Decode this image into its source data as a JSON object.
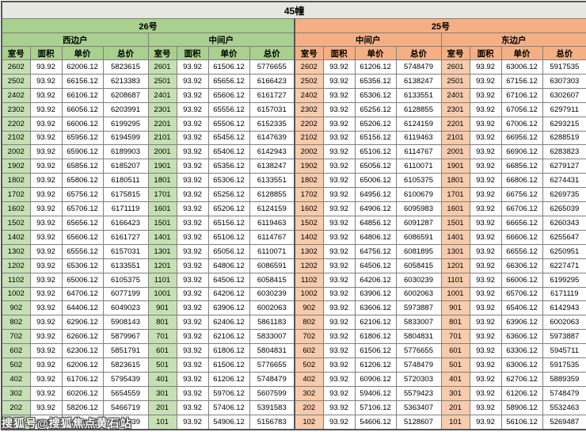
{
  "title": "45幢",
  "watermark": "搜狐号@搜狐焦点黄石站",
  "columns": [
    "室号",
    "面积",
    "单价",
    "总价"
  ],
  "colors": {
    "green_header": "#a9d08e",
    "green_cell": "#c6e0b4",
    "orange_header": "#f4b084",
    "orange_cell": "#f8cbad",
    "title_bg": "#e7e7e2",
    "grid": "#7f7f7f",
    "outer": "#555555"
  },
  "buildings": [
    {
      "name": "26号",
      "theme": "green",
      "units": [
        {
          "name": "西边户",
          "rows": [
            [
              "2602",
              "93.92",
              "62006.12",
              "5823615"
            ],
            [
              "2502",
              "93.92",
              "66156.12",
              "6213383"
            ],
            [
              "2402",
              "93.92",
              "66106.12",
              "6208687"
            ],
            [
              "2302",
              "93.92",
              "66056.12",
              "6203991"
            ],
            [
              "2202",
              "93.92",
              "66006.12",
              "6199295"
            ],
            [
              "2102",
              "93.92",
              "65956.12",
              "6194599"
            ],
            [
              "2002",
              "93.92",
              "65906.12",
              "6189903"
            ],
            [
              "1902",
              "93.92",
              "65856.12",
              "6185207"
            ],
            [
              "1802",
              "93.92",
              "65806.12",
              "6180511"
            ],
            [
              "1702",
              "93.92",
              "65756.12",
              "6175815"
            ],
            [
              "1602",
              "93.92",
              "65706.12",
              "6171119"
            ],
            [
              "1502",
              "93.92",
              "65656.12",
              "6166423"
            ],
            [
              "1402",
              "93.92",
              "65606.12",
              "6161727"
            ],
            [
              "1302",
              "93.92",
              "65556.12",
              "6157031"
            ],
            [
              "1202",
              "93.92",
              "65306.12",
              "6133551"
            ],
            [
              "1102",
              "93.92",
              "65006.12",
              "6105375"
            ],
            [
              "1002",
              "93.92",
              "64706.12",
              "6077199"
            ],
            [
              "902",
              "93.92",
              "64406.12",
              "6049023"
            ],
            [
              "802",
              "93.92",
              "62906.12",
              "5908143"
            ],
            [
              "702",
              "93.92",
              "62606.12",
              "5879967"
            ],
            [
              "602",
              "93.92",
              "62306.12",
              "5851791"
            ],
            [
              "502",
              "93.92",
              "62006.12",
              "5823615"
            ],
            [
              "402",
              "93.92",
              "61706.12",
              "5795439"
            ],
            [
              "302",
              "93.92",
              "60206.12",
              "5654559"
            ],
            [
              "202",
              "93.92",
              "58206.12",
              "5466719"
            ],
            [
              "102",
              "93.92",
              "54206.12",
              "5091039"
            ]
          ]
        },
        {
          "name": "中间户",
          "rows": [
            [
              "2601",
              "93.92",
              "61506.12",
              "5776655"
            ],
            [
              "2501",
              "93.92",
              "65656.12",
              "6166423"
            ],
            [
              "2401",
              "93.92",
              "65606.12",
              "6161727"
            ],
            [
              "2301",
              "93.92",
              "65556.12",
              "6157031"
            ],
            [
              "2201",
              "93.92",
              "65506.12",
              "6152335"
            ],
            [
              "2101",
              "93.92",
              "65456.12",
              "6147639"
            ],
            [
              "2001",
              "93.92",
              "65406.12",
              "6142943"
            ],
            [
              "1901",
              "93.92",
              "65356.12",
              "6138247"
            ],
            [
              "1801",
              "93.92",
              "65306.12",
              "6133551"
            ],
            [
              "1701",
              "93.92",
              "65256.12",
              "6128855"
            ],
            [
              "1601",
              "93.92",
              "65206.12",
              "6124159"
            ],
            [
              "1501",
              "93.92",
              "65156.12",
              "6119463"
            ],
            [
              "1401",
              "93.92",
              "65106.12",
              "6114767"
            ],
            [
              "1301",
              "93.92",
              "65056.12",
              "6110071"
            ],
            [
              "1201",
              "93.92",
              "64806.12",
              "6086591"
            ],
            [
              "1101",
              "93.92",
              "64506.12",
              "6058415"
            ],
            [
              "1001",
              "93.92",
              "64206.12",
              "6030239"
            ],
            [
              "901",
              "93.92",
              "63906.12",
              "6002063"
            ],
            [
              "801",
              "93.92",
              "62406.12",
              "5861183"
            ],
            [
              "701",
              "93.92",
              "62106.12",
              "5833007"
            ],
            [
              "601",
              "93.92",
              "61806.12",
              "5804831"
            ],
            [
              "501",
              "93.92",
              "61506.12",
              "5776655"
            ],
            [
              "401",
              "93.92",
              "61206.12",
              "5748479"
            ],
            [
              "301",
              "93.92",
              "59706.12",
              "5607599"
            ],
            [
              "201",
              "93.92",
              "57406.12",
              "5391583"
            ],
            [
              "101",
              "93.92",
              "54906.12",
              "5156783"
            ]
          ]
        }
      ]
    },
    {
      "name": "25号",
      "theme": "orange",
      "units": [
        {
          "name": "中间户",
          "rows": [
            [
              "2602",
              "93.92",
              "61206.12",
              "5748479"
            ],
            [
              "2502",
              "93.92",
              "65356.12",
              "6138247"
            ],
            [
              "2402",
              "93.92",
              "65306.12",
              "6133551"
            ],
            [
              "2302",
              "93.92",
              "65256.12",
              "6128855"
            ],
            [
              "2202",
              "93.92",
              "65206.12",
              "6124159"
            ],
            [
              "2102",
              "93.92",
              "65156.12",
              "6119463"
            ],
            [
              "2002",
              "93.92",
              "65106.12",
              "6114767"
            ],
            [
              "1902",
              "93.92",
              "65056.12",
              "6110071"
            ],
            [
              "1802",
              "93.92",
              "65006.12",
              "6105375"
            ],
            [
              "1702",
              "93.92",
              "64956.12",
              "6100679"
            ],
            [
              "1602",
              "93.92",
              "64906.12",
              "6095983"
            ],
            [
              "1502",
              "93.92",
              "64856.12",
              "6091287"
            ],
            [
              "1402",
              "93.92",
              "64806.12",
              "6086591"
            ],
            [
              "1302",
              "93.92",
              "64756.12",
              "6081895"
            ],
            [
              "1202",
              "93.92",
              "64506.12",
              "6058415"
            ],
            [
              "1102",
              "93.92",
              "64206.12",
              "6030239"
            ],
            [
              "1002",
              "93.92",
              "63906.12",
              "6002063"
            ],
            [
              "902",
              "93.92",
              "63606.12",
              "5973887"
            ],
            [
              "802",
              "93.92",
              "62106.12",
              "5833007"
            ],
            [
              "702",
              "93.92",
              "61806.12",
              "5804831"
            ],
            [
              "602",
              "93.92",
              "61506.12",
              "5776655"
            ],
            [
              "502",
              "93.92",
              "61206.12",
              "5748479"
            ],
            [
              "402",
              "93.92",
              "60906.12",
              "5720303"
            ],
            [
              "302",
              "93.92",
              "59406.12",
              "5579423"
            ],
            [
              "202",
              "93.92",
              "57106.12",
              "5363407"
            ],
            [
              "102",
              "93.92",
              "54606.12",
              "5128607"
            ]
          ]
        },
        {
          "name": "东边户",
          "rows": [
            [
              "2601",
              "93.92",
              "63006.12",
              "5917535"
            ],
            [
              "2501",
              "93.92",
              "67156.12",
              "6307303"
            ],
            [
              "2401",
              "93.92",
              "67106.12",
              "6302607"
            ],
            [
              "2301",
              "93.92",
              "67056.12",
              "6297911"
            ],
            [
              "2201",
              "93.92",
              "67006.12",
              "6293215"
            ],
            [
              "2101",
              "93.92",
              "66956.12",
              "6288519"
            ],
            [
              "2001",
              "93.92",
              "66906.12",
              "6283823"
            ],
            [
              "1901",
              "93.92",
              "66856.12",
              "6279127"
            ],
            [
              "1801",
              "93.92",
              "66806.12",
              "6274431"
            ],
            [
              "1701",
              "93.92",
              "66756.12",
              "6269735"
            ],
            [
              "1601",
              "93.92",
              "66706.12",
              "6265039"
            ],
            [
              "1501",
              "93.92",
              "66656.12",
              "6260343"
            ],
            [
              "1401",
              "93.92",
              "66606.12",
              "6255647"
            ],
            [
              "1301",
              "93.92",
              "66556.12",
              "6250951"
            ],
            [
              "1201",
              "93.92",
              "66306.12",
              "6227471"
            ],
            [
              "1101",
              "93.92",
              "66006.12",
              "6199295"
            ],
            [
              "1001",
              "93.92",
              "65706.12",
              "6171119"
            ],
            [
              "901",
              "93.92",
              "65406.12",
              "6142943"
            ],
            [
              "801",
              "93.92",
              "63906.12",
              "6002063"
            ],
            [
              "701",
              "93.92",
              "63606.12",
              "5973887"
            ],
            [
              "601",
              "93.92",
              "63306.12",
              "5945711"
            ],
            [
              "501",
              "93.92",
              "63006.12",
              "5917535"
            ],
            [
              "401",
              "93.92",
              "62706.12",
              "5889359"
            ],
            [
              "301",
              "93.92",
              "61206.12",
              "5748479"
            ],
            [
              "201",
              "93.92",
              "58906.12",
              "5532463"
            ],
            [
              "101",
              "93.92",
              "56106.12",
              "5269487"
            ]
          ]
        }
      ]
    }
  ]
}
